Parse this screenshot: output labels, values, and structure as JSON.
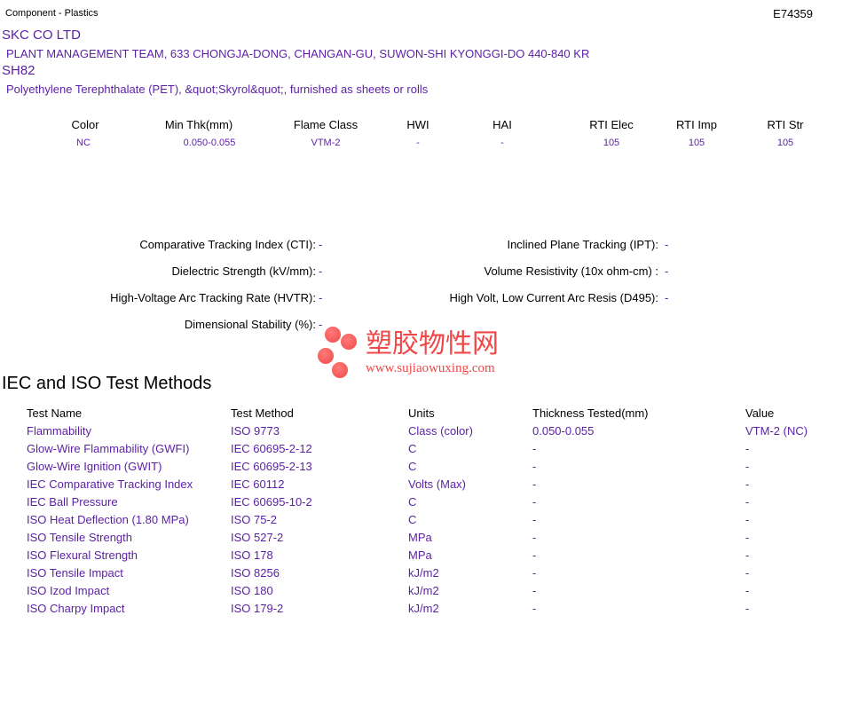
{
  "header": {
    "category": "Component - Plastics",
    "file_number": "E74359"
  },
  "company": {
    "name": "SKC CO LTD",
    "address": "PLANT MANAGEMENT TEAM, 633 CHONGJA-DONG, CHANGAN-GU, SUWON-SHI  KYONGGI-DO  440-840 KR"
  },
  "product": {
    "grade": "SH82",
    "description": "Polyethylene Terephthalate (PET), &quot;Skyrol&quot;, furnished as sheets or rolls"
  },
  "summary": {
    "headers": [
      "Color",
      "Min Thk(mm)",
      "Flame Class",
      "HWI",
      "HAI",
      "RTI Elec",
      "RTI Imp",
      "RTI Str"
    ],
    "values": [
      "NC",
      "0.050-0.055",
      "VTM-2",
      "-",
      "-",
      "105",
      "105",
      "105"
    ]
  },
  "properties": {
    "left": [
      {
        "label": "Comparative Tracking Index (CTI):",
        "value": "-"
      },
      {
        "label": "Dielectric Strength (kV/mm):",
        "value": "-"
      },
      {
        "label": "High-Voltage Arc Tracking Rate (HVTR):",
        "value": "-"
      },
      {
        "label": "Dimensional Stability (%):",
        "value": "-"
      }
    ],
    "right": [
      {
        "label": "Inclined Plane Tracking (IPT):",
        "value": "-"
      },
      {
        "label": "Volume Resistivity (10x ohm-cm) :",
        "value": "-"
      },
      {
        "label": "High Volt, Low Current Arc Resis (D495):",
        "value": "-"
      }
    ]
  },
  "watermark": {
    "text": "塑胶物性网",
    "url": "www.sujiaowuxing.com",
    "color": "#f04848"
  },
  "methods": {
    "title": "IEC and ISO Test Methods",
    "headers": [
      "Test Name",
      "Test Method",
      "Units",
      "Thickness Tested(mm)",
      "Value"
    ],
    "rows": [
      [
        "Flammability",
        "ISO 9773",
        "Class (color)",
        "0.050-0.055",
        "VTM-2 (NC)"
      ],
      [
        "Glow-Wire Flammability (GWFI)",
        "IEC 60695-2-12",
        "C",
        "-",
        "-"
      ],
      [
        "Glow-Wire Ignition (GWIT)",
        "IEC 60695-2-13",
        "C",
        "-",
        "-"
      ],
      [
        "IEC Comparative Tracking Index",
        "IEC 60112",
        "Volts (Max)",
        "-",
        "-"
      ],
      [
        "IEC Ball Pressure",
        "IEC 60695-10-2",
        "C",
        "-",
        "-"
      ],
      [
        "ISO Heat Deflection (1.80 MPa)",
        "ISO 75-2",
        "C",
        "-",
        "-"
      ],
      [
        "ISO Tensile Strength",
        "ISO 527-2",
        "MPa",
        "-",
        "-"
      ],
      [
        "ISO Flexural Strength",
        "ISO 178",
        "MPa",
        "-",
        "-"
      ],
      [
        "ISO Tensile Impact",
        "ISO 8256",
        "kJ/m2",
        "-",
        "-"
      ],
      [
        "ISO Izod Impact",
        "ISO 180",
        "kJ/m2",
        "-",
        "-"
      ],
      [
        "ISO Charpy Impact",
        "ISO 179-2",
        "kJ/m2",
        "-",
        "-"
      ]
    ]
  }
}
